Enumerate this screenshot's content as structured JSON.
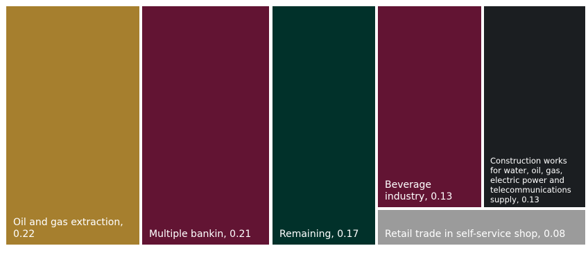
{
  "chart_data": {
    "type": "treemap",
    "title": "",
    "legend": "none",
    "items": [
      {
        "label": "Oil and gas extraction, 0.22",
        "value": 0.22,
        "color": "#A67F2E"
      },
      {
        "label": "Multiple bankin, 0.21",
        "value": 0.21,
        "color": "#621433"
      },
      {
        "label": "Remaining, 0.17",
        "value": 0.17,
        "color": "#01312A"
      },
      {
        "label": "Beverage industry, 0.13",
        "value": 0.13,
        "color": "#621433"
      },
      {
        "label": "Construction works for water, oil, gas, electric power and telecommunications supply, 0.13",
        "value": 0.13,
        "color": "#1B1E21"
      },
      {
        "label": "Retail trade in self-service shop, 0.08",
        "value": 0.08,
        "color": "#9B9B9B"
      }
    ]
  }
}
